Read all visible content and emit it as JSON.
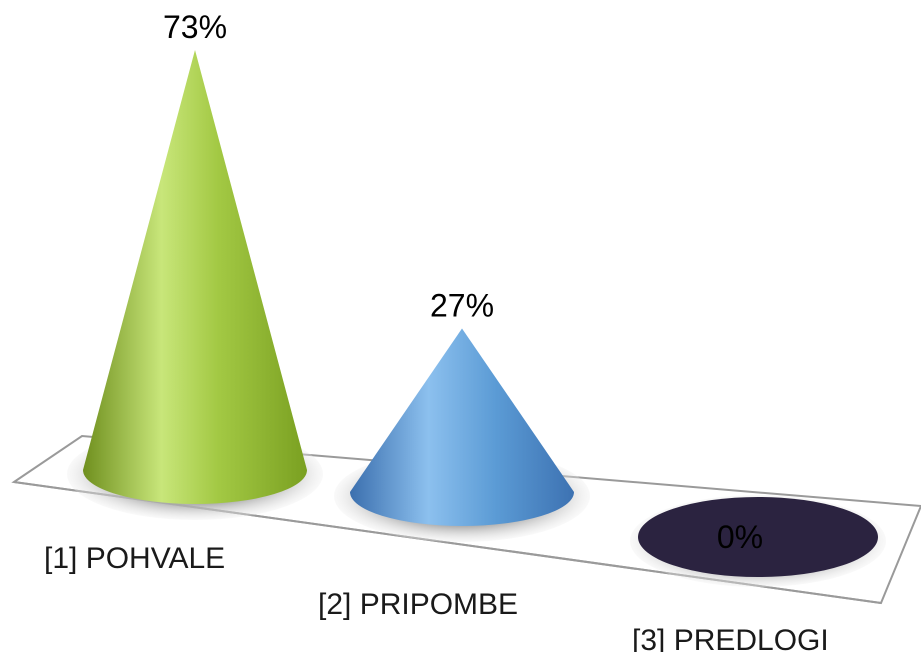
{
  "chart_data": {
    "type": "bar",
    "style": "3d-cone",
    "categories": [
      "[1] POHVALE",
      "[2] PRIPOMBE",
      "[3] PREDLOGI"
    ],
    "values": [
      73,
      27,
      0
    ],
    "value_labels": [
      "73%",
      "27%",
      "0%"
    ],
    "unit": "%",
    "ylim": [
      0,
      73
    ],
    "grid": false,
    "legend": "none",
    "colors": {
      "series_0": "#9bc23c",
      "series_1": "#5b9bd5",
      "series_2": "#2b2340",
      "floor_stroke": "#9a9a9a",
      "floor_fill": "#ffffff",
      "shadow": "#bdbdbd"
    }
  }
}
